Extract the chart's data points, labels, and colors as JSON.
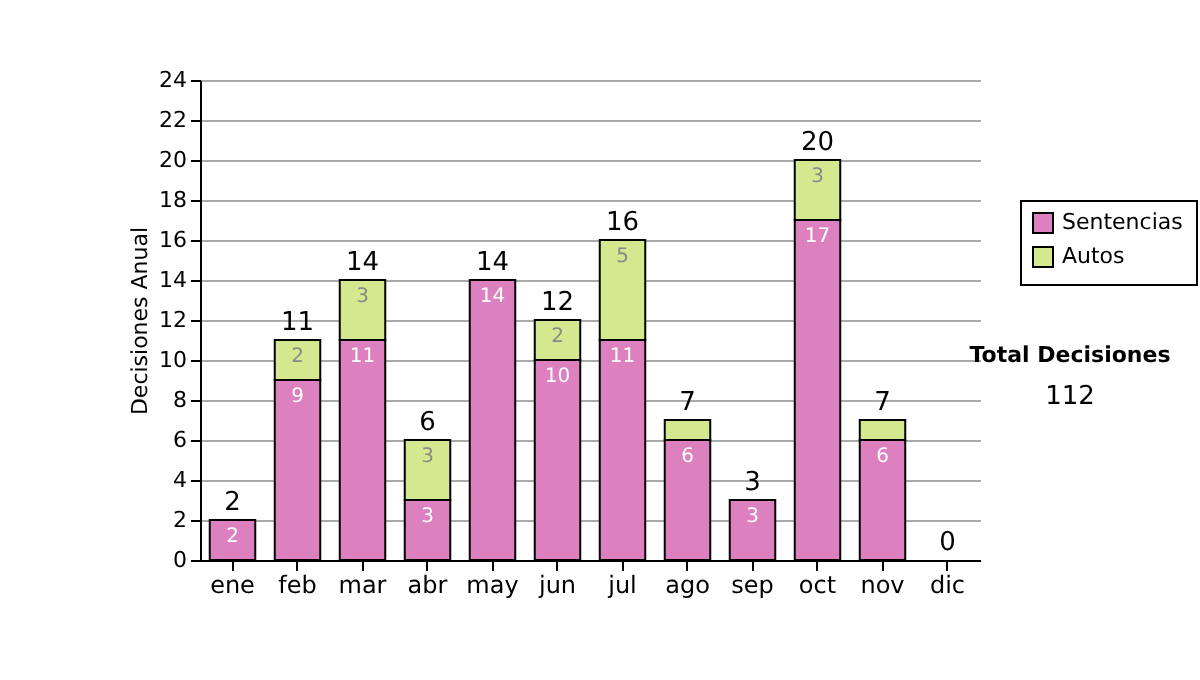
{
  "chart_data": {
    "type": "bar",
    "stacked": true,
    "ylabel": "Decisiones Anual",
    "categories": [
      "ene",
      "feb",
      "mar",
      "abr",
      "may",
      "jun",
      "jul",
      "ago",
      "sep",
      "oct",
      "nov",
      "dic"
    ],
    "series": [
      {
        "name": "Sentencias",
        "color": "#dd80bf",
        "values": [
          2,
          9,
          11,
          3,
          14,
          10,
          11,
          6,
          3,
          17,
          6,
          0
        ],
        "value_labels": [
          "2",
          "9",
          "11",
          "3",
          "14",
          "10",
          "11",
          "6",
          "3",
          "17",
          "6",
          null
        ]
      },
      {
        "name": "Autos",
        "color": "#d4e88f",
        "values": [
          0,
          2,
          3,
          3,
          0,
          2,
          5,
          1,
          0,
          3,
          1,
          0
        ],
        "value_labels": [
          null,
          "2",
          "3",
          "3",
          null,
          "2",
          "5",
          null,
          null,
          "3",
          null,
          null
        ]
      }
    ],
    "totals": [
      "2",
      "11",
      "14",
      "6",
      "14",
      "12",
      "16",
      "7",
      "3",
      "20",
      "7",
      "0"
    ],
    "ylim": [
      0,
      24
    ],
    "yticks": [
      0,
      2,
      4,
      6,
      8,
      10,
      12,
      14,
      16,
      18,
      20,
      22,
      24
    ],
    "grid": "y",
    "legend": "right",
    "annotations": [
      "Total Decisiones",
      "112"
    ]
  }
}
